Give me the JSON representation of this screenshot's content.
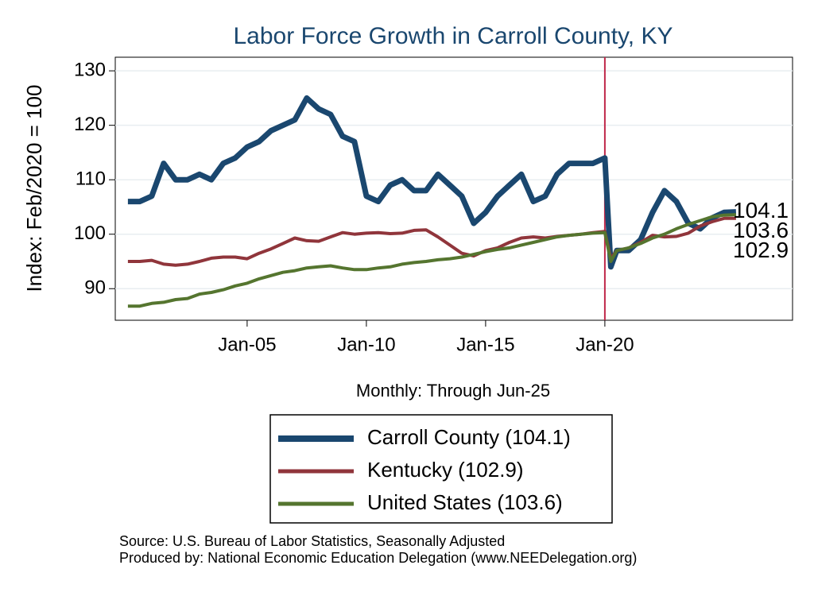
{
  "chart_data": {
    "type": "line",
    "title": "Labor Force Growth in Carroll  County, KY",
    "x_label": "Monthly: Through Jun-25",
    "y_label": "Index: Feb/2020 = 100",
    "notes": [
      "Source: U.S. Bureau of Labor Statistics, Seasonally Adjusted",
      "Produced by: National Economic Education Delegation (www.NEEDelegation.org)"
    ],
    "x": [
      2000,
      2000.5,
      2001,
      2001.5,
      2002,
      2002.5,
      2003,
      2003.5,
      2004,
      2004.5,
      2005,
      2005.5,
      2006,
      2006.5,
      2007,
      2007.5,
      2008,
      2008.5,
      2009,
      2009.5,
      2010,
      2010.5,
      2011,
      2011.5,
      2012,
      2012.5,
      2013,
      2013.5,
      2014,
      2014.5,
      2015,
      2015.5,
      2016,
      2016.5,
      2017,
      2017.5,
      2018,
      2018.5,
      2019,
      2019.5,
      2020,
      2020.25,
      2020.5,
      2021,
      2021.5,
      2022,
      2022.5,
      2023,
      2023.5,
      2024,
      2024.5,
      2025,
      2025.5
    ],
    "series": [
      {
        "name": "Carroll  County (104.1)",
        "color": "#1a476f",
        "width": 7,
        "end_label": "104.1",
        "values": [
          106,
          106,
          107,
          113,
          110,
          110,
          111,
          110,
          113,
          114,
          116,
          117,
          119,
          120,
          121,
          125,
          123,
          122,
          118,
          117,
          107,
          106,
          109,
          110,
          108,
          108,
          111,
          109,
          107,
          102,
          104,
          107,
          109,
          111,
          106,
          107,
          111,
          113,
          113,
          113,
          114,
          94,
          97,
          97,
          99,
          104,
          108,
          106,
          102,
          101,
          103,
          104,
          104.1
        ]
      },
      {
        "name": "Kentucky (102.9)",
        "color": "#90353b",
        "width": 4,
        "end_label": "102.9",
        "values": [
          95,
          95,
          95.2,
          94.5,
          94.3,
          94.5,
          95,
          95.6,
          95.8,
          95.8,
          95.5,
          96.5,
          97.3,
          98.3,
          99.3,
          98.8,
          98.7,
          99.5,
          100.3,
          100,
          100.2,
          100.3,
          100.1,
          100.2,
          100.7,
          100.8,
          99.5,
          98,
          96.5,
          96,
          97,
          97.5,
          98.5,
          99.3,
          99.5,
          99.3,
          99.6,
          99.8,
          100,
          100.3,
          100.5,
          95.5,
          97,
          97.5,
          98.5,
          99.8,
          99.5,
          99.6,
          100.2,
          101.5,
          102.3,
          102.9,
          102.9
        ]
      },
      {
        "name": "United States (103.6)",
        "color": "#55752f",
        "width": 4,
        "end_label": "103.6",
        "values": [
          86.8,
          86.8,
          87.3,
          87.5,
          88,
          88.2,
          89,
          89.3,
          89.8,
          90.5,
          91,
          91.8,
          92.4,
          93,
          93.3,
          93.8,
          94,
          94.2,
          93.8,
          93.5,
          93.5,
          93.8,
          94,
          94.5,
          94.8,
          95,
          95.3,
          95.5,
          95.8,
          96.3,
          96.8,
          97.2,
          97.5,
          98,
          98.5,
          99,
          99.5,
          99.8,
          100,
          100.2,
          100.3,
          95,
          97,
          97.5,
          98.3,
          99.3,
          100,
          101,
          101.8,
          102.5,
          103.2,
          103.5,
          103.6
        ]
      }
    ],
    "vline": {
      "x": 2020,
      "color": "#c0284a"
    },
    "xlim": [
      1999.47,
      2027.87
    ],
    "ylim": [
      84.2,
      132.5
    ],
    "xticks": [
      {
        "value": 2005,
        "label": "Jan-05"
      },
      {
        "value": 2010,
        "label": "Jan-10"
      },
      {
        "value": 2015,
        "label": "Jan-15"
      },
      {
        "value": 2020,
        "label": "Jan-20"
      }
    ],
    "yticks": [
      90,
      100,
      110,
      120,
      130
    ],
    "grid": true
  }
}
